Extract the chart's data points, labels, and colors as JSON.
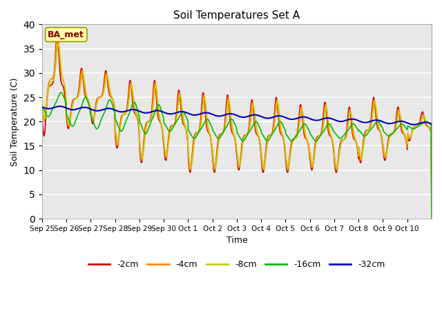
{
  "title": "Soil Temperatures Set A",
  "xlabel": "Time",
  "ylabel": "Soil Temperature (C)",
  "ylim": [
    0,
    40
  ],
  "yticks": [
    0,
    5,
    10,
    15,
    20,
    25,
    30,
    35,
    40
  ],
  "xtick_labels": [
    "Sep 25",
    "Sep 26",
    "Sep 27",
    "Sep 28",
    "Sep 29",
    "Sep 30",
    "Oct 1",
    "Oct 2",
    "Oct 3",
    "Oct 4",
    "Oct 5",
    "Oct 6",
    "Oct 7",
    "Oct 8",
    "Oct 9",
    "Oct 10"
  ],
  "annotation_text": "BA_met",
  "annotation_facecolor": "#ffffaa",
  "annotation_edgecolor": "#999900",
  "annotation_textcolor": "#880000",
  "colors": {
    "-2cm": "#cc0000",
    "-4cm": "#ff8800",
    "-8cm": "#cccc00",
    "-16cm": "#00bb00",
    "-32cm": "#0000bb"
  },
  "background_color": "#e8e8e8",
  "figure_color": "#ffffff",
  "linewidth": 1.2
}
